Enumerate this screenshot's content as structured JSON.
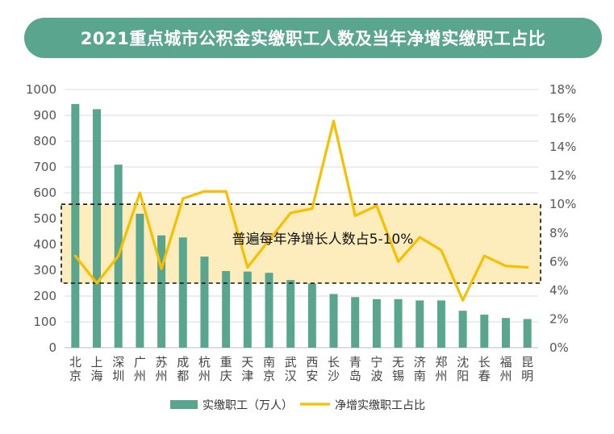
{
  "chart_data": {
    "type": "bar+line",
    "title": "2021重点城市公积金实缴职工人数及当年净增实缴职工占比",
    "categories": [
      "北京",
      "上海",
      "深圳",
      "广州",
      "苏州",
      "成都",
      "杭州",
      "重庆",
      "天津",
      "南京",
      "武汉",
      "西安",
      "长沙",
      "青岛",
      "宁波",
      "无锡",
      "济南",
      "郑州",
      "沈阳",
      "长春",
      "福州",
      "昆明"
    ],
    "series": [
      {
        "name": "实缴职工（万人）",
        "type": "bar",
        "axis": "left",
        "color": "#5aa58e",
        "values": [
          944,
          924,
          709,
          519,
          435,
          427,
          353,
          297,
          295,
          290,
          262,
          249,
          208,
          196,
          188,
          188,
          183,
          183,
          143,
          128,
          115,
          111
        ]
      },
      {
        "name": "净增实缴职工占比",
        "type": "line",
        "axis": "right",
        "color": "#f6bf00",
        "values": [
          6.4,
          4.5,
          6.4,
          10.8,
          5.5,
          10.4,
          10.9,
          10.9,
          5.6,
          7.5,
          9.4,
          9.7,
          15.8,
          9.2,
          9.9,
          6.0,
          7.7,
          6.8,
          3.3,
          6.4,
          5.7,
          5.6
        ]
      }
    ],
    "y_left": {
      "min": 0,
      "max": 1000,
      "step": 100,
      "ticks": [
        "0",
        "100",
        "200",
        "300",
        "400",
        "500",
        "600",
        "700",
        "800",
        "900",
        "1000"
      ]
    },
    "y_right": {
      "min": 0,
      "max": 18,
      "step": 2,
      "ticks": [
        "0%",
        "2%",
        "4%",
        "6%",
        "8%",
        "10%",
        "12%",
        "14%",
        "16%",
        "18%"
      ]
    },
    "annotation": {
      "text": "普遍每年净增长人数占5-10%",
      "range_right_axis": [
        4.5,
        10
      ],
      "fill": "#fdedbd"
    },
    "legend_position": "bottom",
    "grid": true
  }
}
